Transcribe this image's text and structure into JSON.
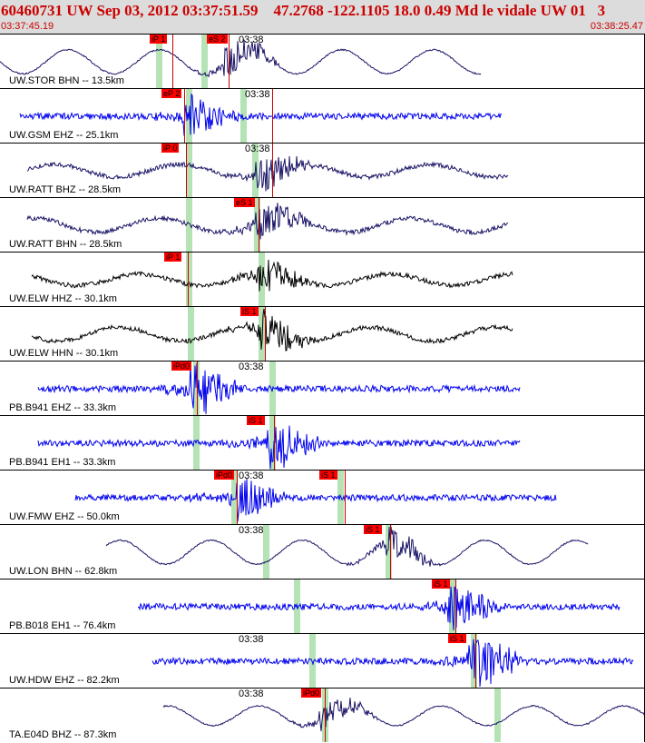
{
  "header": {
    "title": "60460731 UW Sep 03, 2012 03:37:51.59    47.2768 -122.1105 18.0 0.49 Md le vidale UW 01   3",
    "start_time": "03:37:45.19",
    "end_time": "03:38:25.47"
  },
  "colors": {
    "header_bg": "#dcdcdc",
    "header_text": "#cc0000",
    "pick_bg": "#ff0000",
    "band": "#96d796",
    "navy": "#1a1466",
    "blue": "#0000ee",
    "black": "#000000"
  },
  "traces": [
    {
      "channel": "UW.STOR BHN -- 13.5km",
      "time": "03:38",
      "color": "navy",
      "style": "slow",
      "picks": [
        "iP 1",
        "eS 2"
      ]
    },
    {
      "channel": "UW.GSM EHZ -- 25.1km",
      "time": "03:38",
      "color": "blue",
      "style": "noisy",
      "picks": [
        "eP 2"
      ]
    },
    {
      "channel": "UW.RATT BHZ -- 28.5km",
      "time": "03:38",
      "color": "navy",
      "style": "mixed",
      "picks": [
        "iP 0"
      ]
    },
    {
      "channel": "UW.RATT BHN -- 28.5km",
      "time": "",
      "color": "navy",
      "style": "mixed",
      "picks": [
        "eS 1"
      ]
    },
    {
      "channel": "UW.ELW HHZ -- 30.1km",
      "time": "",
      "color": "black",
      "style": "mixed",
      "picks": [
        "iP 1"
      ]
    },
    {
      "channel": "UW.ELW HHN -- 30.1km",
      "time": "",
      "color": "black",
      "style": "mixed",
      "picks": [
        "iS 1"
      ]
    },
    {
      "channel": "PB.B941 EHZ -- 33.3km",
      "time": "03:38",
      "color": "blue",
      "style": "noisy",
      "picks": [
        "iPd0"
      ]
    },
    {
      "channel": "PB.B941 EH1 -- 33.3km",
      "time": "",
      "color": "blue",
      "style": "noisy",
      "picks": [
        "iS 1"
      ]
    },
    {
      "channel": "UW.FMW EHZ -- 50.0km",
      "time": "03:38",
      "color": "blue",
      "style": "noisy",
      "picks": [
        "iPd0",
        "iS 1"
      ]
    },
    {
      "channel": "UW.LON BHN -- 62.8km",
      "time": "03:38",
      "color": "navy",
      "style": "slow",
      "picks": [
        "iS 1"
      ]
    },
    {
      "channel": "PB.B018 EH1 -- 76.4km",
      "time": "",
      "color": "blue",
      "style": "noisy",
      "picks": [
        "iS 1"
      ]
    },
    {
      "channel": "UW.HDW EHZ -- 82.2km",
      "time": "03:38",
      "color": "blue",
      "style": "noisy",
      "picks": [
        "iS 1"
      ]
    },
    {
      "channel": "TA.E04D BHZ -- 87.3km",
      "time": "03:38",
      "color": "navy",
      "style": "slow",
      "picks": [
        "iPd0"
      ]
    }
  ]
}
